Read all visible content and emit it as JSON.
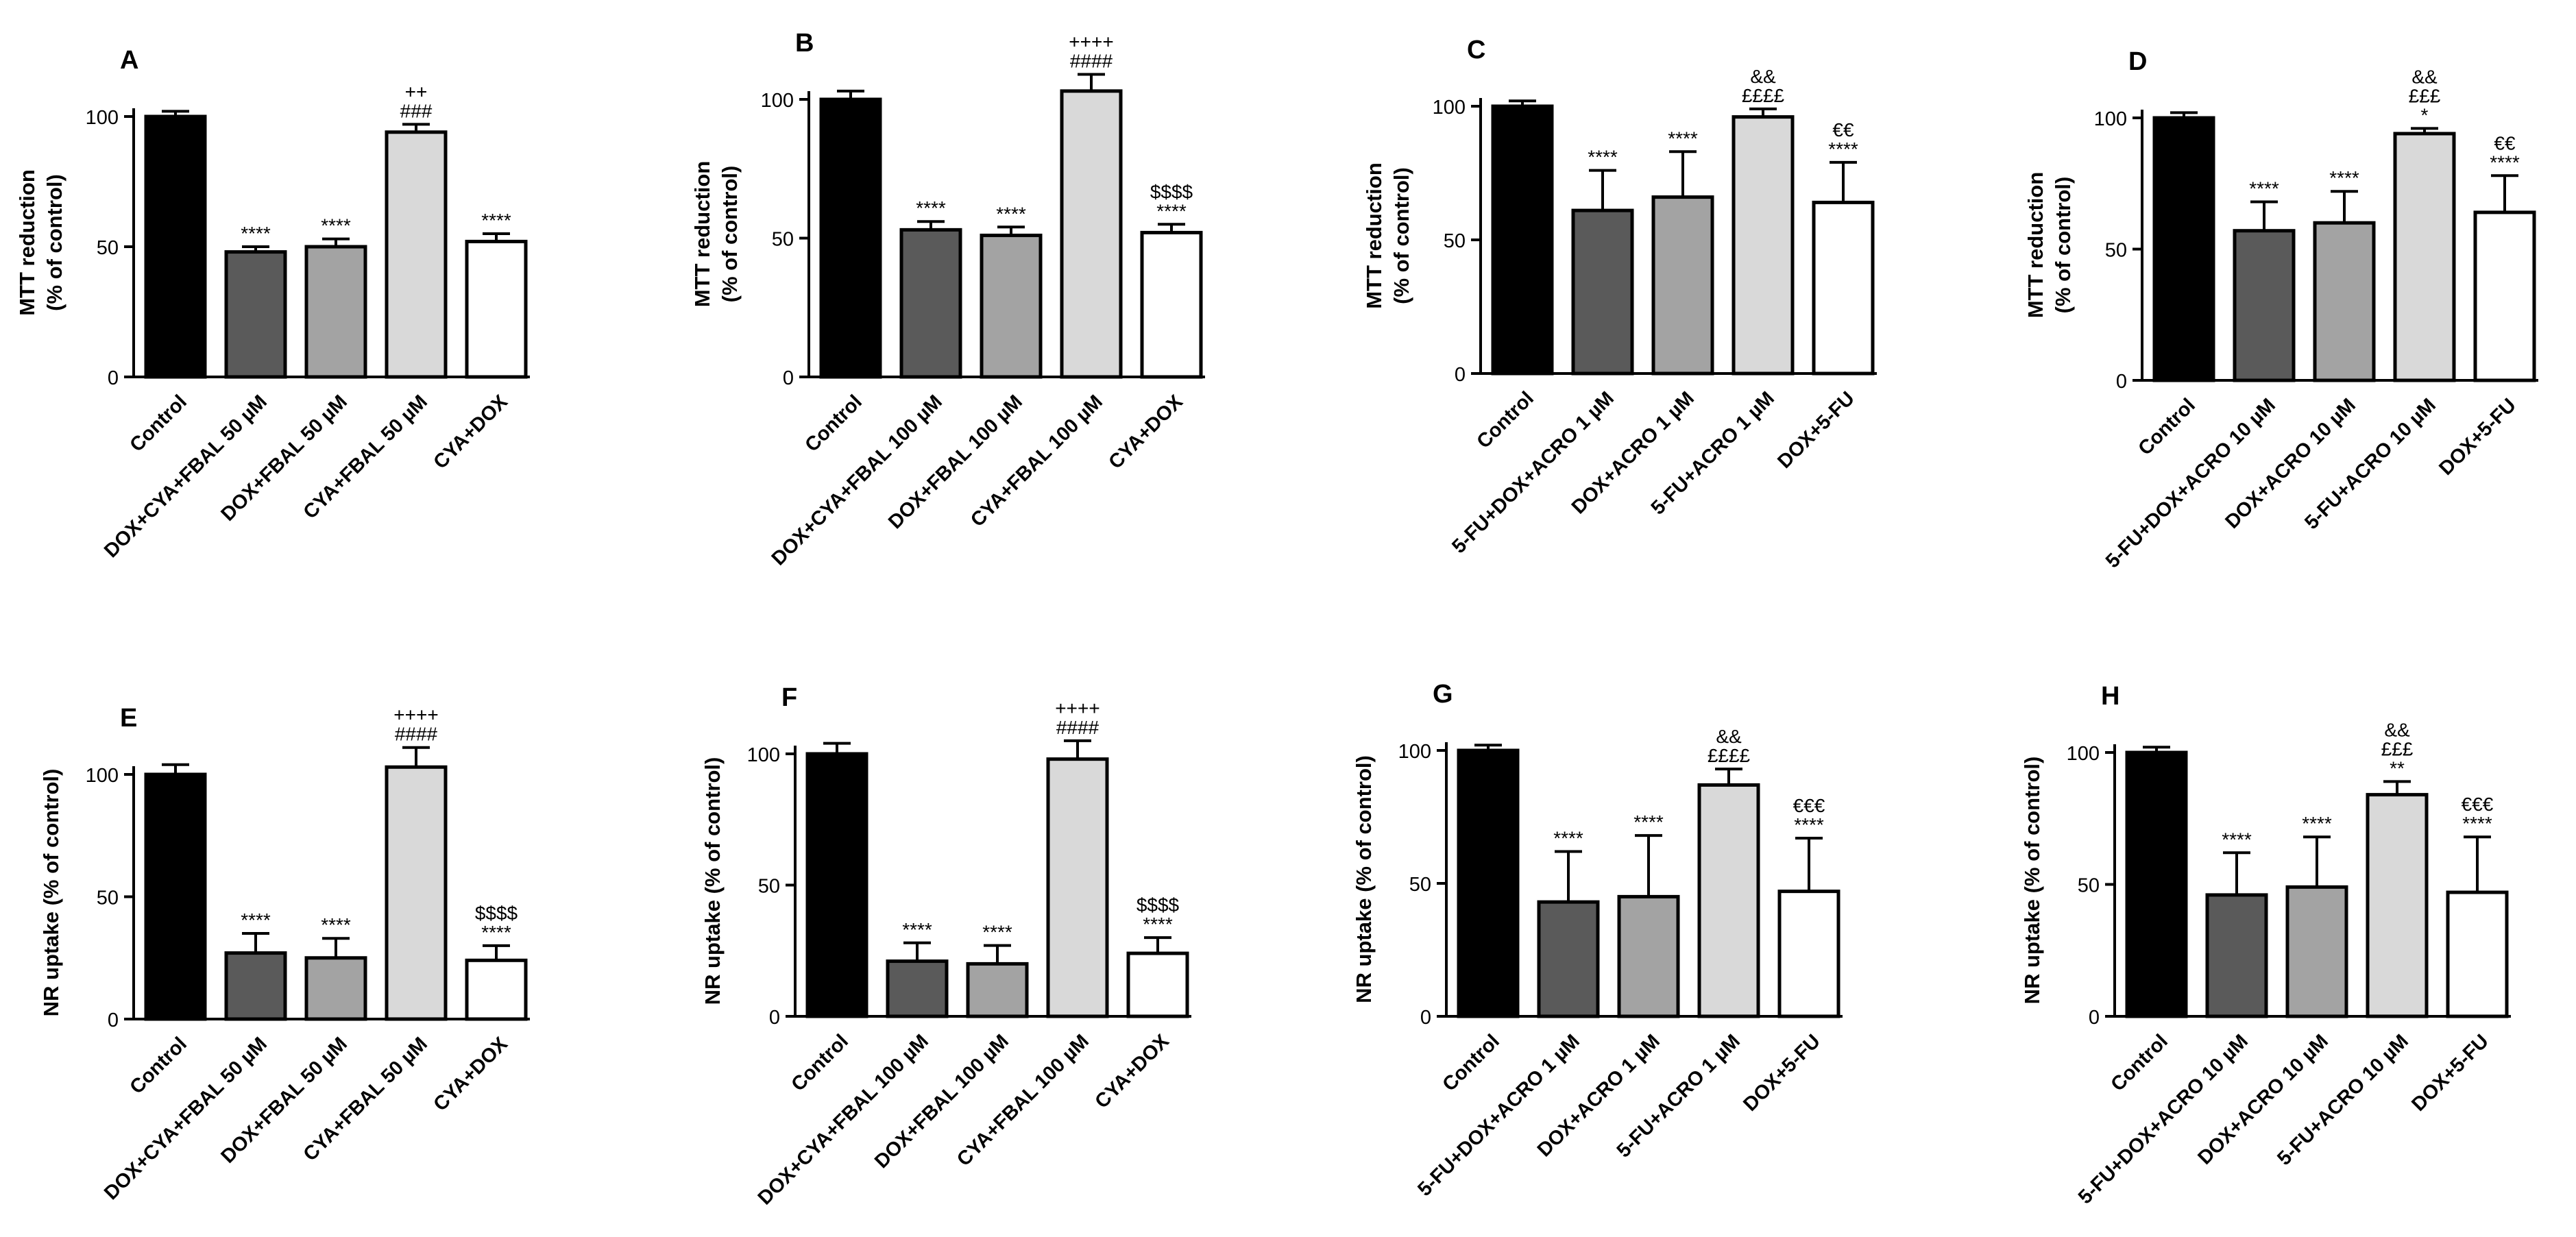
{
  "chart_data": [
    {
      "panel": "A",
      "type": "bar",
      "ylabel_lines": [
        "MTT reduction",
        "(% of control)"
      ],
      "ylim": [
        0,
        100
      ],
      "yticks": [
        0,
        50,
        100
      ],
      "categories": [
        "Control",
        "DOX+CYA+FBAL 50 µM",
        "DOX+FBAL 50 µM",
        "CYA+FBAL 50 µM",
        "CYA+DOX"
      ],
      "values": [
        100,
        48,
        50,
        94,
        52
      ],
      "errors": [
        2,
        2,
        3,
        3,
        3
      ],
      "fills": [
        "#000000",
        "#5a5a5a",
        "#a3a3a3",
        "#d9d9d9",
        "#ffffff"
      ],
      "annotations": [
        [],
        [
          "****"
        ],
        [
          "****"
        ],
        [
          "++",
          "###"
        ],
        [
          "****"
        ]
      ]
    },
    {
      "panel": "B",
      "type": "bar",
      "ylabel_lines": [
        "MTT reduction",
        "(% of control)"
      ],
      "ylim": [
        0,
        100
      ],
      "yticks": [
        0,
        50,
        100
      ],
      "categories": [
        "Control",
        "DOX+CYA+FBAL 100 µM",
        "DOX+FBAL 100 µM",
        "CYA+FBAL 100 µM",
        "CYA+DOX"
      ],
      "values": [
        100,
        53,
        51,
        103,
        52
      ],
      "errors": [
        3,
        3,
        3,
        6,
        3
      ],
      "fills": [
        "#000000",
        "#5a5a5a",
        "#a3a3a3",
        "#d9d9d9",
        "#ffffff"
      ],
      "annotations": [
        [],
        [
          "****"
        ],
        [
          "****"
        ],
        [
          "++++",
          "####"
        ],
        [
          "$$$$",
          "****"
        ]
      ]
    },
    {
      "panel": "C",
      "type": "bar",
      "ylabel_lines": [
        "MTT reduction",
        "(% of control)"
      ],
      "ylim": [
        0,
        100
      ],
      "yticks": [
        0,
        50,
        100
      ],
      "categories": [
        "Control",
        "5-FU+DOX+ACRO 1 µM",
        "DOX+ACRO 1 µM",
        "5-FU+ACRO 1 µM",
        "DOX+5-FU"
      ],
      "values": [
        100,
        61,
        66,
        96,
        64
      ],
      "errors": [
        2,
        15,
        17,
        3,
        15
      ],
      "fills": [
        "#000000",
        "#5a5a5a",
        "#a3a3a3",
        "#d9d9d9",
        "#ffffff"
      ],
      "annotations": [
        [],
        [
          "****"
        ],
        [
          "****"
        ],
        [
          "&&",
          "££££"
        ],
        [
          "€€",
          "****"
        ]
      ]
    },
    {
      "panel": "D",
      "type": "bar",
      "ylabel_lines": [
        "MTT reduction",
        "(% of control)"
      ],
      "ylim": [
        0,
        100
      ],
      "yticks": [
        0,
        50,
        100
      ],
      "categories": [
        "Control",
        "5-FU+DOX+ACRO 10 µM",
        "DOX+ACRO 10 µM",
        "5-FU+ACRO 10 µM",
        "DOX+5-FU"
      ],
      "values": [
        100,
        57,
        60,
        94,
        64
      ],
      "errors": [
        2,
        11,
        12,
        2,
        14
      ],
      "fills": [
        "#000000",
        "#5a5a5a",
        "#a3a3a3",
        "#d9d9d9",
        "#ffffff"
      ],
      "annotations": [
        [],
        [
          "****"
        ],
        [
          "****"
        ],
        [
          "&&",
          "£££",
          "*"
        ],
        [
          "€€",
          "****"
        ]
      ]
    },
    {
      "panel": "E",
      "type": "bar",
      "ylabel_lines": [
        "NR uptake (% of control)"
      ],
      "ylim": [
        0,
        100
      ],
      "yticks": [
        0,
        50,
        100
      ],
      "categories": [
        "Control",
        "DOX+CYA+FBAL 50 µM",
        "DOX+FBAL 50 µM",
        "CYA+FBAL 50 µM",
        "CYA+DOX"
      ],
      "values": [
        100,
        27,
        25,
        103,
        24
      ],
      "errors": [
        4,
        8,
        8,
        8,
        6
      ],
      "fills": [
        "#000000",
        "#5a5a5a",
        "#a3a3a3",
        "#d9d9d9",
        "#ffffff"
      ],
      "annotations": [
        [],
        [
          "****"
        ],
        [
          "****"
        ],
        [
          "++++",
          "####"
        ],
        [
          "$$$$",
          "****"
        ]
      ]
    },
    {
      "panel": "F",
      "type": "bar",
      "ylabel_lines": [
        "NR uptake (% of control)"
      ],
      "ylim": [
        0,
        100
      ],
      "yticks": [
        0,
        50,
        100
      ],
      "categories": [
        "Control",
        "DOX+CYA+FBAL 100 µM",
        "DOX+FBAL 100 µM",
        "CYA+FBAL 100 µM",
        "CYA+DOX"
      ],
      "values": [
        100,
        21,
        20,
        98,
        24
      ],
      "errors": [
        4,
        7,
        7,
        7,
        6
      ],
      "fills": [
        "#000000",
        "#5a5a5a",
        "#a3a3a3",
        "#d9d9d9",
        "#ffffff"
      ],
      "annotations": [
        [],
        [
          "****"
        ],
        [
          "****"
        ],
        [
          "++++",
          "####"
        ],
        [
          "$$$$",
          "****"
        ]
      ]
    },
    {
      "panel": "G",
      "type": "bar",
      "ylabel_lines": [
        "NR uptake (% of control)"
      ],
      "ylim": [
        0,
        100
      ],
      "yticks": [
        0,
        50,
        100
      ],
      "categories": [
        "Control",
        "5-FU+DOX+ACRO 1 µM",
        "DOX+ACRO 1 µM",
        "5-FU+ACRO 1 µM",
        "DOX+5-FU"
      ],
      "values": [
        100,
        43,
        45,
        87,
        47
      ],
      "errors": [
        2,
        19,
        23,
        6,
        20
      ],
      "fills": [
        "#000000",
        "#5a5a5a",
        "#a3a3a3",
        "#d9d9d9",
        "#ffffff"
      ],
      "annotations": [
        [],
        [
          "****"
        ],
        [
          "****"
        ],
        [
          "&&",
          "££££"
        ],
        [
          "€€€",
          "****"
        ]
      ]
    },
    {
      "panel": "H",
      "type": "bar",
      "ylabel_lines": [
        "NR uptake (% of control)"
      ],
      "ylim": [
        0,
        100
      ],
      "yticks": [
        0,
        50,
        100
      ],
      "categories": [
        "Control",
        "5-FU+DOX+ACRO 10 µM",
        "DOX+ACRO 10 µM",
        "5-FU+ACRO 10 µM",
        "DOX+5-FU"
      ],
      "values": [
        100,
        46,
        49,
        84,
        47
      ],
      "errors": [
        2,
        16,
        19,
        5,
        21
      ],
      "fills": [
        "#000000",
        "#5a5a5a",
        "#a3a3a3",
        "#d9d9d9",
        "#ffffff"
      ],
      "annotations": [
        [],
        [
          "****"
        ],
        [
          "****"
        ],
        [
          "&&",
          "£££",
          "**"
        ],
        [
          "€€€",
          "****"
        ]
      ]
    }
  ]
}
